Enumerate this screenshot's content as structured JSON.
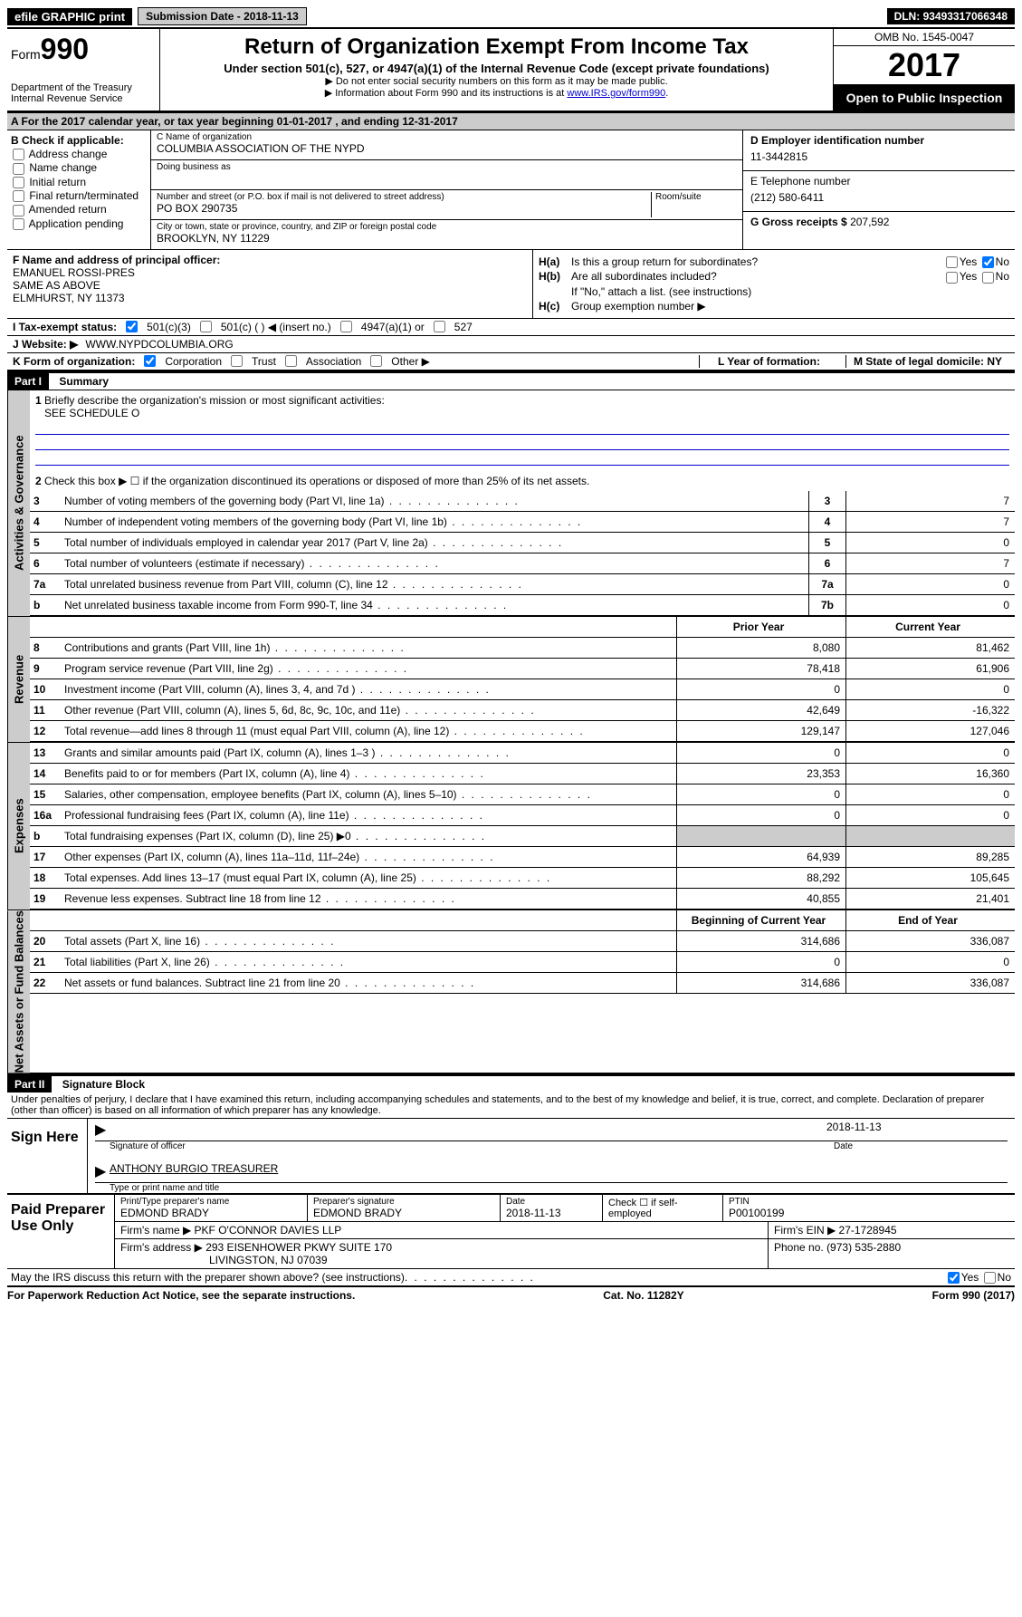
{
  "topbar": {
    "efile": "efile GRAPHIC print",
    "submission_label": "Submission Date - ",
    "submission_date": "2018-11-13",
    "dln_label": "DLN: ",
    "dln": "93493317066348"
  },
  "header": {
    "form_label": "Form",
    "form_num": "990",
    "dept1": "Department of the Treasury",
    "dept2": "Internal Revenue Service",
    "title": "Return of Organization Exempt From Income Tax",
    "subtitle": "Under section 501(c), 527, or 4947(a)(1) of the Internal Revenue Code (except private foundations)",
    "note1": "▶ Do not enter social security numbers on this form as it may be made public.",
    "note2_pre": "▶ Information about Form 990 and its instructions is at ",
    "note2_link": "www.IRS.gov/form990",
    "omb": "OMB No. 1545-0047",
    "year": "2017",
    "open": "Open to Public Inspection"
  },
  "row_a": "A  For the 2017 calendar year, or tax year beginning 01-01-2017   , and ending 12-31-2017",
  "col_b": {
    "label": "B Check if applicable:",
    "items": [
      "Address change",
      "Name change",
      "Initial return",
      "Final return/terminated",
      "Amended return",
      "Application pending"
    ]
  },
  "col_c": {
    "name_lbl": "C Name of organization",
    "name": "COLUMBIA ASSOCIATION OF THE NYPD",
    "dba_lbl": "Doing business as",
    "dba": "",
    "addr_lbl": "Number and street (or P.O. box if mail is not delivered to street address)",
    "room_lbl": "Room/suite",
    "addr": "PO BOX 290735",
    "city_lbl": "City or town, state or province, country, and ZIP or foreign postal code",
    "city": "BROOKLYN, NY  11229"
  },
  "col_d": {
    "ein_lbl": "D Employer identification number",
    "ein": "11-3442815",
    "tel_lbl": "E Telephone number",
    "tel": "(212) 580-6411",
    "gross_lbl": "G Gross receipts $ ",
    "gross": "207,592"
  },
  "col_f": {
    "lbl": "F Name and address of principal officer:",
    "name": "EMANUEL ROSSI-PRES",
    "addr1": "SAME AS ABOVE",
    "addr2": "ELMHURST, NY  11373"
  },
  "col_h": {
    "ha_lbl": "H(a)",
    "ha_txt": "Is this a group return for subordinates?",
    "hb_lbl": "H(b)",
    "hb_txt": "Are all subordinates included?",
    "hb_note": "If \"No,\" attach a list. (see instructions)",
    "hc_lbl": "H(c)",
    "hc_txt": "Group exemption number ▶",
    "yes": "Yes",
    "no": "No"
  },
  "row_i": {
    "lbl": "I   Tax-exempt status:",
    "o1": "501(c)(3)",
    "o2": "501(c) (   ) ◀ (insert no.)",
    "o3": "4947(a)(1) or",
    "o4": "527"
  },
  "row_j": {
    "lbl": "J  Website: ▶",
    "val": " WWW.NYPDCOLUMBIA.ORG"
  },
  "row_k": {
    "lbl": "K Form of organization:",
    "o1": "Corporation",
    "o2": "Trust",
    "o3": "Association",
    "o4": "Other ▶",
    "l_lbl": "L Year of formation:",
    "m_lbl": "M State of legal domicile: NY"
  },
  "part1": {
    "title": "Part I",
    "subtitle": "Summary",
    "q1": "Briefly describe the organization's mission or most significant activities:",
    "q1_val": "SEE SCHEDULE O",
    "q2": "Check this box ▶ ☐  if the organization discontinued its operations or disposed of more than 25% of its net assets.",
    "vtab_gov": "Activities & Governance",
    "vtab_rev": "Revenue",
    "vtab_exp": "Expenses",
    "vtab_net": "Net Assets or Fund Balances",
    "prior": "Prior Year",
    "current": "Current Year",
    "begin": "Beginning of Current Year",
    "end": "End of Year",
    "lines_gov": [
      {
        "n": "3",
        "d": "Number of voting members of the governing body (Part VI, line 1a)",
        "box": "3",
        "v": "7"
      },
      {
        "n": "4",
        "d": "Number of independent voting members of the governing body (Part VI, line 1b)",
        "box": "4",
        "v": "7"
      },
      {
        "n": "5",
        "d": "Total number of individuals employed in calendar year 2017 (Part V, line 2a)",
        "box": "5",
        "v": "0"
      },
      {
        "n": "6",
        "d": "Total number of volunteers (estimate if necessary)",
        "box": "6",
        "v": "7"
      },
      {
        "n": "7a",
        "d": "Total unrelated business revenue from Part VIII, column (C), line 12",
        "box": "7a",
        "v": "0"
      },
      {
        "n": "b",
        "d": "Net unrelated business taxable income from Form 990-T, line 34",
        "box": "7b",
        "v": "0"
      }
    ],
    "lines_rev": [
      {
        "n": "8",
        "d": "Contributions and grants (Part VIII, line 1h)",
        "p": "8,080",
        "c": "81,462"
      },
      {
        "n": "9",
        "d": "Program service revenue (Part VIII, line 2g)",
        "p": "78,418",
        "c": "61,906"
      },
      {
        "n": "10",
        "d": "Investment income (Part VIII, column (A), lines 3, 4, and 7d )",
        "p": "0",
        "c": "0"
      },
      {
        "n": "11",
        "d": "Other revenue (Part VIII, column (A), lines 5, 6d, 8c, 9c, 10c, and 11e)",
        "p": "42,649",
        "c": "-16,322"
      },
      {
        "n": "12",
        "d": "Total revenue—add lines 8 through 11 (must equal Part VIII, column (A), line 12)",
        "p": "129,147",
        "c": "127,046"
      }
    ],
    "lines_exp": [
      {
        "n": "13",
        "d": "Grants and similar amounts paid (Part IX, column (A), lines 1–3 )",
        "p": "0",
        "c": "0"
      },
      {
        "n": "14",
        "d": "Benefits paid to or for members (Part IX, column (A), line 4)",
        "p": "23,353",
        "c": "16,360"
      },
      {
        "n": "15",
        "d": "Salaries, other compensation, employee benefits (Part IX, column (A), lines 5–10)",
        "p": "0",
        "c": "0"
      },
      {
        "n": "16a",
        "d": "Professional fundraising fees (Part IX, column (A), line 11e)",
        "p": "0",
        "c": "0"
      },
      {
        "n": "b",
        "d": "Total fundraising expenses (Part IX, column (D), line 25) ▶0",
        "p": "",
        "c": "",
        "shaded": true
      },
      {
        "n": "17",
        "d": "Other expenses (Part IX, column (A), lines 11a–11d, 11f–24e)",
        "p": "64,939",
        "c": "89,285"
      },
      {
        "n": "18",
        "d": "Total expenses. Add lines 13–17 (must equal Part IX, column (A), line 25)",
        "p": "88,292",
        "c": "105,645"
      },
      {
        "n": "19",
        "d": "Revenue less expenses. Subtract line 18 from line 12",
        "p": "40,855",
        "c": "21,401"
      }
    ],
    "lines_net": [
      {
        "n": "20",
        "d": "Total assets (Part X, line 16)",
        "p": "314,686",
        "c": "336,087"
      },
      {
        "n": "21",
        "d": "Total liabilities (Part X, line 26)",
        "p": "0",
        "c": "0"
      },
      {
        "n": "22",
        "d": "Net assets or fund balances. Subtract line 21 from line 20",
        "p": "314,686",
        "c": "336,087"
      }
    ]
  },
  "part2": {
    "title": "Part II",
    "subtitle": "Signature Block",
    "perjury": "Under penalties of perjury, I declare that I have examined this return, including accompanying schedules and statements, and to the best of my knowledge and belief, it is true, correct, and complete. Declaration of preparer (other than officer) is based on all information of which preparer has any knowledge.",
    "sign_here": "Sign Here",
    "sig_date": "2018-11-13",
    "sig_lbl": "Signature of officer",
    "date_lbl": "Date",
    "officer": "ANTHONY BURGIO TREASURER",
    "officer_lbl": "Type or print name and title"
  },
  "preparer": {
    "title": "Paid Preparer Use Only",
    "name_lbl": "Print/Type preparer's name",
    "name": "EDMOND BRADY",
    "sig_lbl": "Preparer's signature",
    "sig": "EDMOND BRADY",
    "date_lbl": "Date",
    "date": "2018-11-13",
    "check_lbl": "Check ☐ if self-employed",
    "ptin_lbl": "PTIN",
    "ptin": "P00100199",
    "firm_name_lbl": "Firm's name    ▶ ",
    "firm_name": "PKF O'CONNOR DAVIES LLP",
    "firm_ein_lbl": "Firm's EIN ▶ ",
    "firm_ein": "27-1728945",
    "firm_addr_lbl": "Firm's address ▶ ",
    "firm_addr1": "293 EISENHOWER PKWY SUITE 170",
    "firm_addr2": "LIVINGSTON, NJ  07039",
    "phone_lbl": "Phone no. ",
    "phone": "(973) 535-2880"
  },
  "footer": {
    "discuss": "May the IRS discuss this return with the preparer shown above? (see instructions)",
    "yes": "Yes",
    "no": "No",
    "paperwork": "For Paperwork Reduction Act Notice, see the separate instructions.",
    "cat": "Cat. No. 11282Y",
    "form": "Form 990 (2017)"
  }
}
